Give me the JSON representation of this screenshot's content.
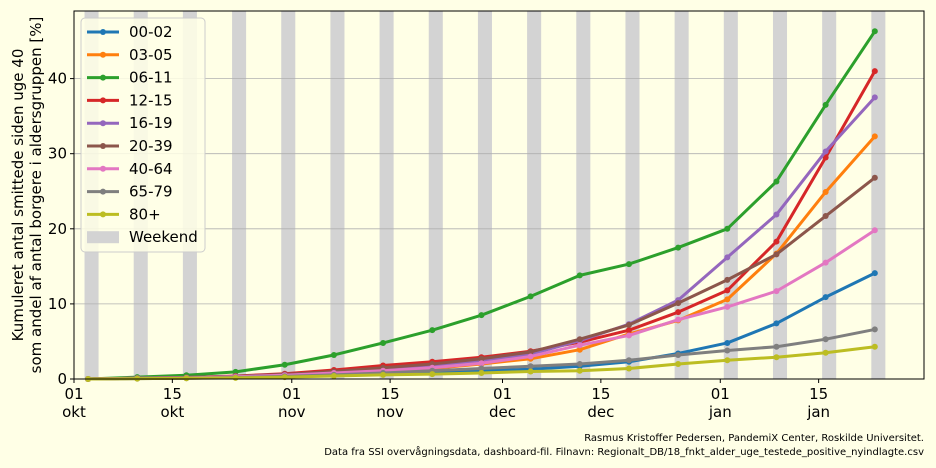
{
  "chart_data": {
    "type": "line",
    "title": "",
    "xlabel": "",
    "ylabel_lines": [
      "Kumuleret antal smittede siden uge 40",
      "som andel af antal borgere i aldersgruppen [%]"
    ],
    "ylim": [
      0,
      49
    ],
    "yticks": [
      0,
      10,
      20,
      30,
      40
    ],
    "grid": "horizontal",
    "legend_position": "upper-left",
    "x_day_range": [
      0,
      121
    ],
    "xticks": [
      {
        "day": 0,
        "top": "01",
        "bottom": "okt"
      },
      {
        "day": 14,
        "top": "15",
        "bottom": "okt"
      },
      {
        "day": 31,
        "top": "01",
        "bottom": "nov"
      },
      {
        "day": 45,
        "top": "15",
        "bottom": "nov"
      },
      {
        "day": 61,
        "top": "01",
        "bottom": "dec"
      },
      {
        "day": 75,
        "top": "15",
        "bottom": "dec"
      },
      {
        "day": 92,
        "top": "01",
        "bottom": "jan"
      },
      {
        "day": 106,
        "top": "15",
        "bottom": "jan"
      }
    ],
    "x_days": [
      2,
      9,
      16,
      23,
      30,
      37,
      44,
      51,
      58,
      65,
      72,
      79,
      86,
      93,
      100,
      107,
      114
    ],
    "weekend_start_days": [
      2,
      9,
      16,
      23,
      30,
      37,
      44,
      51,
      58,
      65,
      72,
      79,
      86,
      93,
      100,
      107,
      114
    ],
    "weekend_label": "Weekend",
    "weekend_color": "#d3d3d3",
    "series": [
      {
        "name": "00-02",
        "color": "#1f77b4",
        "values": [
          0,
          0.1,
          0.2,
          0.3,
          0.45,
          0.6,
          0.75,
          0.9,
          1.1,
          1.3,
          1.7,
          2.3,
          3.4,
          4.8,
          7.4,
          10.9,
          14.1
        ]
      },
      {
        "name": "03-05",
        "color": "#ff7f0e",
        "values": [
          0,
          0.1,
          0.2,
          0.35,
          0.5,
          0.7,
          1.0,
          1.4,
          2.0,
          2.7,
          3.9,
          6.0,
          7.8,
          10.6,
          16.7,
          24.9,
          32.3
        ]
      },
      {
        "name": "06-11",
        "color": "#2ca02c",
        "values": [
          0,
          0.25,
          0.5,
          0.95,
          1.9,
          3.2,
          4.8,
          6.5,
          8.5,
          11.0,
          13.8,
          15.3,
          17.5,
          20.0,
          26.3,
          36.5,
          46.3
        ]
      },
      {
        "name": "12-15",
        "color": "#d62728",
        "values": [
          0,
          0.1,
          0.2,
          0.4,
          0.7,
          1.2,
          1.8,
          2.3,
          2.9,
          3.7,
          4.9,
          6.5,
          8.9,
          11.8,
          18.3,
          29.5,
          41.0
        ]
      },
      {
        "name": "16-19",
        "color": "#9467bd",
        "values": [
          0,
          0.1,
          0.2,
          0.35,
          0.6,
          0.9,
          1.3,
          1.7,
          2.4,
          3.3,
          5.1,
          7.3,
          10.5,
          16.2,
          21.9,
          30.3,
          37.5
        ]
      },
      {
        "name": "20-39",
        "color": "#8c564b",
        "values": [
          0,
          0.1,
          0.2,
          0.35,
          0.6,
          1.0,
          1.5,
          2.0,
          2.7,
          3.6,
          5.3,
          7.2,
          10.1,
          13.2,
          16.6,
          21.7,
          26.8
        ]
      },
      {
        "name": "40-64",
        "color": "#e377c2",
        "values": [
          0,
          0.1,
          0.15,
          0.3,
          0.5,
          0.8,
          1.1,
          1.5,
          2.1,
          3.0,
          4.5,
          5.8,
          7.9,
          9.6,
          11.7,
          15.5,
          19.8
        ]
      },
      {
        "name": "65-79",
        "color": "#7f7f7f",
        "values": [
          0,
          0.05,
          0.1,
          0.2,
          0.35,
          0.55,
          0.8,
          1.1,
          1.4,
          1.7,
          2.0,
          2.5,
          3.2,
          3.8,
          4.3,
          5.3,
          6.6
        ]
      },
      {
        "name": "80+",
        "color": "#bcbd22",
        "values": [
          0,
          0.05,
          0.1,
          0.15,
          0.25,
          0.4,
          0.55,
          0.65,
          0.8,
          1.0,
          1.1,
          1.4,
          2.0,
          2.5,
          2.9,
          3.5,
          4.3
        ]
      }
    ]
  },
  "credits": {
    "line1": "Rasmus Kristoffer Pedersen, PandemiX Center, Roskilde Universitet.",
    "line2": "Data fra SSI overvågningsdata, dashboard-fil. Filnavn: Regionalt_DB/18_fnkt_alder_uge_testede_positive_nyindlagte.csv"
  }
}
